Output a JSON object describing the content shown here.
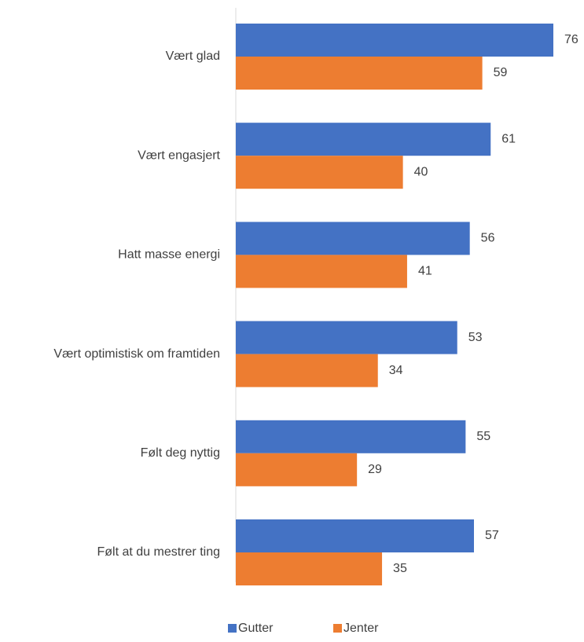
{
  "chart_data": {
    "type": "bar",
    "orientation": "horizontal",
    "categories": [
      "Vært glad",
      "Vært engasjert",
      "Hatt masse energi",
      "Vært optimistisk om framtiden",
      "Følt deg nyttig",
      "Følt at du mestrer ting"
    ],
    "series": [
      {
        "name": "Gutter",
        "color": "#4472C4",
        "values": [
          76,
          61,
          56,
          53,
          55,
          57
        ]
      },
      {
        "name": "Jenter",
        "color": "#ED7D31",
        "values": [
          59,
          40,
          41,
          34,
          29,
          35
        ]
      }
    ],
    "xlim": [
      0,
      76
    ],
    "data_labels": true,
    "grid": false,
    "legend_position": "bottom"
  }
}
